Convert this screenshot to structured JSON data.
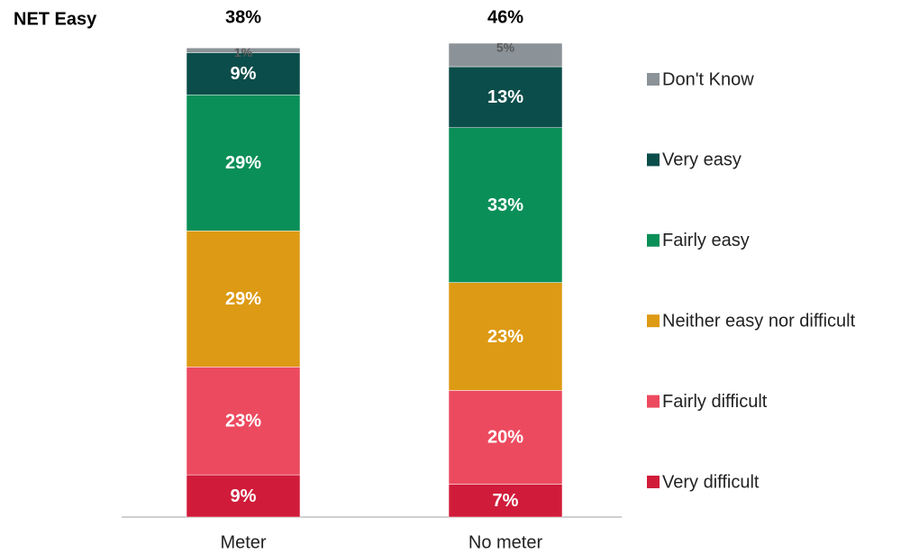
{
  "chart_data": {
    "type": "stacked_bar",
    "net_label": "NET Easy",
    "net_values": [
      38,
      46
    ],
    "net_value_labels": [
      "38%",
      "46%"
    ],
    "categories": [
      "Meter",
      "No meter"
    ],
    "series": [
      {
        "name": "Very difficult",
        "color": "#d01c3a",
        "label_color": "#ffffff",
        "values": [
          9,
          7
        ],
        "value_labels": [
          "9%",
          "7%"
        ]
      },
      {
        "name": "Fairly difficult",
        "color": "#ec4a5f",
        "label_color": "#ffffff",
        "values": [
          23,
          20
        ],
        "value_labels": [
          "23%",
          "20%"
        ]
      },
      {
        "name": "Neither easy nor difficult",
        "color": "#dd9a14",
        "label_color": "#ffffff",
        "values": [
          29,
          23
        ],
        "value_labels": [
          "29%",
          "23%"
        ]
      },
      {
        "name": "Fairly easy",
        "color": "#0a8f58",
        "label_color": "#ffffff",
        "values": [
          29,
          33
        ],
        "value_labels": [
          "29%",
          "33%"
        ]
      },
      {
        "name": "Very easy",
        "color": "#0b4d4a",
        "label_color": "#ffffff",
        "values": [
          9,
          13
        ],
        "value_labels": [
          "9%",
          "13%"
        ]
      },
      {
        "name": "Don't Know",
        "color": "#8c9398",
        "label_color": "#595959",
        "values": [
          1,
          5
        ],
        "value_labels": [
          "1%",
          "5%"
        ]
      }
    ],
    "legend": "right"
  }
}
